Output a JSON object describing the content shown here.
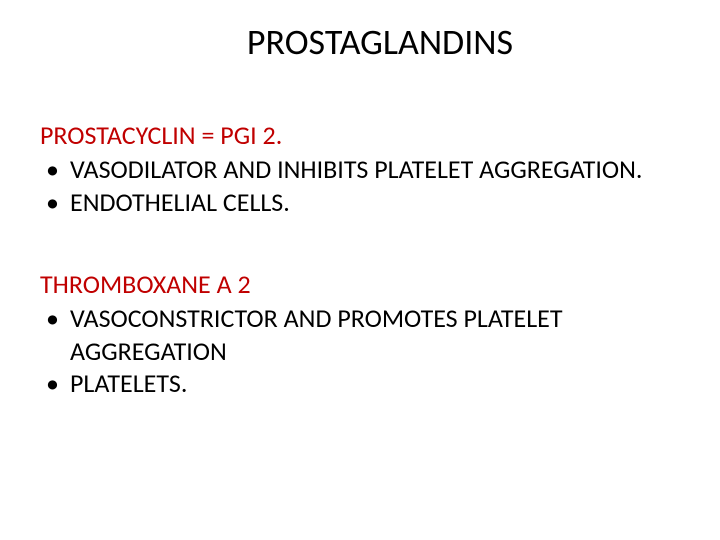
{
  "title": "PROSTAGLANDINS",
  "sections": [
    {
      "heading": "PROSTACYCLIN = PGI 2.",
      "heading_color": "#c00000",
      "bullets": [
        "VASODILATOR AND INHIBITS PLATELET AGGREGATION.",
        "ENDOTHELIAL CELLS."
      ]
    },
    {
      "heading": "THROMBOXANE A 2",
      "heading_color": "#c00000",
      "bullets": [
        "VASOCONSTRICTOR AND PROMOTES PLATELET AGGREGATION",
        "PLATELETS."
      ]
    }
  ],
  "colors": {
    "background": "#ffffff",
    "title_color": "#000000",
    "body_text_color": "#000000",
    "heading_color": "#c00000"
  },
  "typography": {
    "title_fontsize": 36,
    "heading_fontsize": 26,
    "body_fontsize": 26,
    "font_family": "Calibri"
  }
}
